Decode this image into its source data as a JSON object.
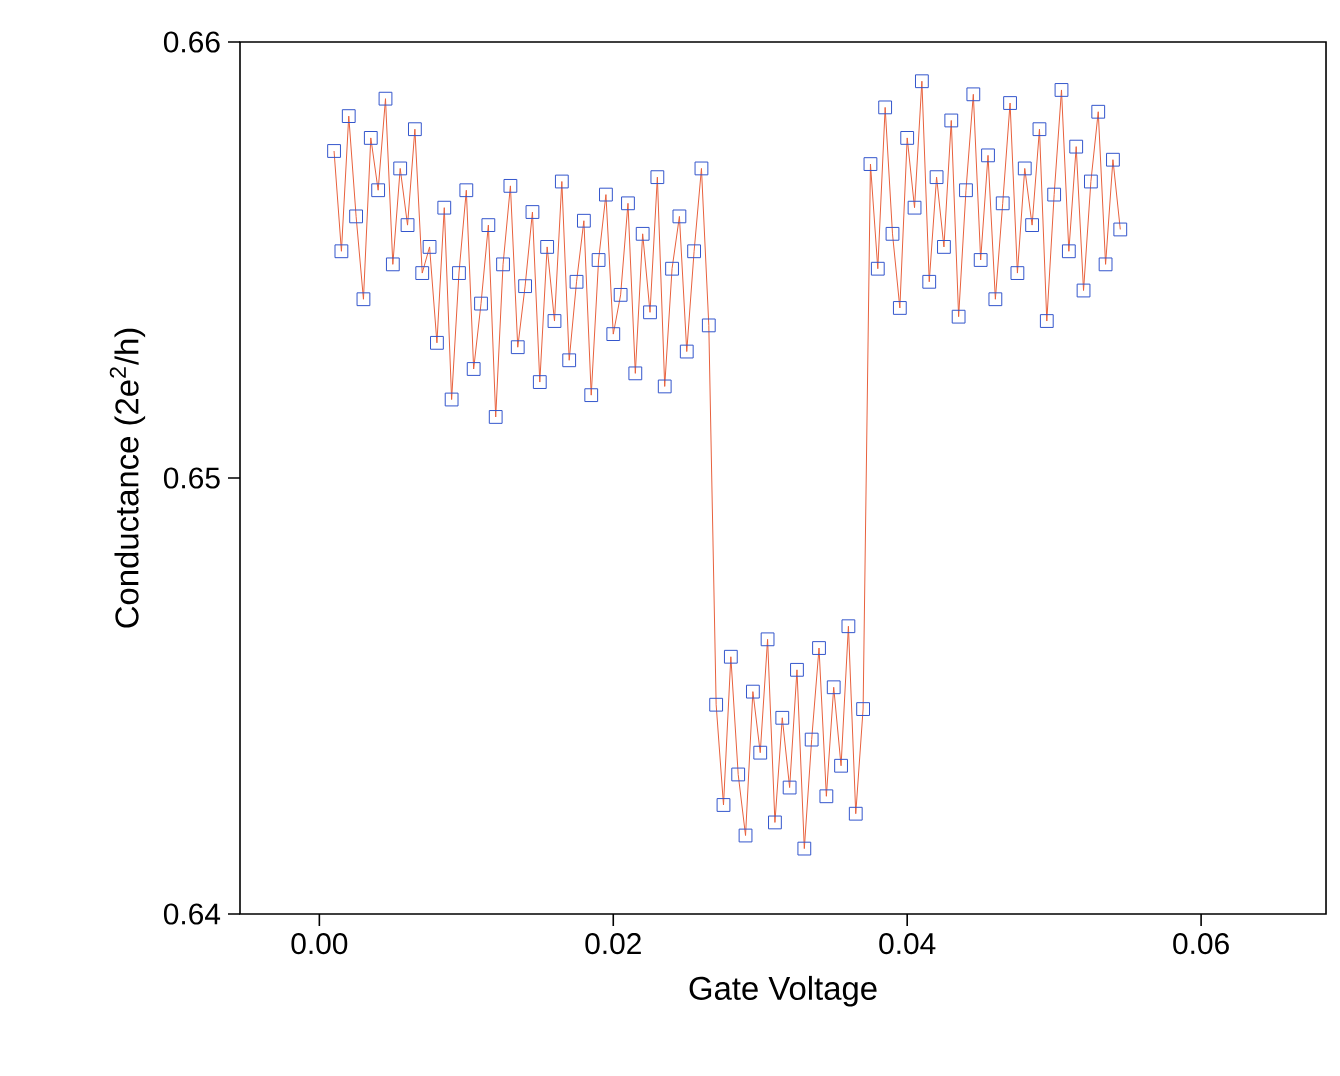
{
  "chart_data": {
    "type": "scatter",
    "xlabel": "Gate Voltage",
    "ylabel": "Conductance (2e$^{2}$/h)",
    "xlim": [
      -0.0054,
      0.0685
    ],
    "ylim": [
      0.64,
      0.66
    ],
    "xticks": [
      {
        "value": 0,
        "label": "0.00"
      },
      {
        "value": 0.02,
        "label": "0.02"
      },
      {
        "value": 0.04,
        "label": "0.04"
      },
      {
        "value": 0.06,
        "label": "0.06"
      }
    ],
    "yticks": [
      0.64,
      0.65,
      0.66
    ],
    "grid": false,
    "marker": "square",
    "x": [
      0.001,
      0.0015,
      0.002,
      0.0025,
      0.003,
      0.0035,
      0.004,
      0.0045,
      0.005,
      0.0055,
      0.006,
      0.0065,
      0.007,
      0.0075,
      0.008,
      0.0085,
      0.009,
      0.0095,
      0.01,
      0.0105,
      0.011,
      0.0115,
      0.012,
      0.0125,
      0.013,
      0.0135,
      0.014,
      0.0145,
      0.015,
      0.0155,
      0.016,
      0.0165,
      0.017,
      0.0175,
      0.018,
      0.0185,
      0.019,
      0.0195,
      0.02,
      0.0205,
      0.021,
      0.0215,
      0.022,
      0.0225,
      0.023,
      0.0235,
      0.024,
      0.0245,
      0.025,
      0.0255,
      0.026,
      0.0265,
      0.027,
      0.0275,
      0.028,
      0.0285,
      0.029,
      0.0295,
      0.03,
      0.0305,
      0.031,
      0.0315,
      0.032,
      0.0325,
      0.033,
      0.0335,
      0.034,
      0.0345,
      0.035,
      0.0355,
      0.036,
      0.0365,
      0.037,
      0.0375,
      0.038,
      0.0385,
      0.039,
      0.0395,
      0.04,
      0.0405,
      0.041,
      0.0415,
      0.042,
      0.0425,
      0.043,
      0.0435,
      0.044,
      0.0445,
      0.045,
      0.0455,
      0.046,
      0.0465,
      0.047,
      0.0475,
      0.048,
      0.0485,
      0.049,
      0.0495,
      0.05,
      0.0505,
      0.051,
      0.0515,
      0.052,
      0.0525,
      0.053,
      0.0535,
      0.054,
      0.0545
    ],
    "series": [
      {
        "type": "line",
        "color": "#e8603c",
        "marker": "none",
        "values": [
          0.6575,
          0.6552,
          0.6583,
          0.656,
          0.6541,
          0.6578,
          0.6566,
          0.6587,
          0.6549,
          0.6571,
          0.6558,
          0.658,
          0.6547,
          0.6553,
          0.6531,
          0.6562,
          0.6518,
          0.6547,
          0.6566,
          0.6525,
          0.654,
          0.6558,
          0.6514,
          0.6549,
          0.6567,
          0.653,
          0.6544,
          0.6561,
          0.6522,
          0.6553,
          0.6536,
          0.6568,
          0.6527,
          0.6545,
          0.6559,
          0.6519,
          0.655,
          0.6565,
          0.6533,
          0.6542,
          0.6563,
          0.6524,
          0.6556,
          0.6538,
          0.6569,
          0.6521,
          0.6548,
          0.656,
          0.6529,
          0.6552,
          0.6571,
          0.6535,
          0.6448,
          0.6425,
          0.6459,
          0.6432,
          0.6418,
          0.6451,
          0.6437,
          0.6463,
          0.6421,
          0.6445,
          0.6429,
          0.6456,
          0.6415,
          0.644,
          0.6461,
          0.6427,
          0.6452,
          0.6434,
          0.6466,
          0.6423,
          0.6447,
          0.6572,
          0.6548,
          0.6585,
          0.6556,
          0.6539,
          0.6578,
          0.6562,
          0.6591,
          0.6545,
          0.6569,
          0.6553,
          0.6582,
          0.6537,
          0.6566,
          0.6588,
          0.655,
          0.6574,
          0.6541,
          0.6563,
          0.6586,
          0.6547,
          0.6571,
          0.6558,
          0.658,
          0.6536,
          0.6565,
          0.6589,
          0.6552,
          0.6576,
          0.6543,
          0.6568,
          0.6584,
          0.6549,
          0.6573,
          0.6557
        ]
      },
      {
        "color": "#3355cc",
        "values": [
          0.6575,
          0.6552,
          0.6583,
          0.656,
          0.6541,
          0.6578,
          0.6566,
          0.6587,
          0.6549,
          0.6571,
          0.6558,
          0.658,
          0.6547,
          0.6553,
          0.6531,
          0.6562,
          0.6518,
          0.6547,
          0.6566,
          0.6525,
          0.654,
          0.6558,
          0.6514,
          0.6549,
          0.6567,
          0.653,
          0.6544,
          0.6561,
          0.6522,
          0.6553,
          0.6536,
          0.6568,
          0.6527,
          0.6545,
          0.6559,
          0.6519,
          0.655,
          0.6565,
          0.6533,
          0.6542,
          0.6563,
          0.6524,
          0.6556,
          0.6538,
          0.6569,
          0.6521,
          0.6548,
          0.656,
          0.6529,
          0.6552,
          0.6571,
          0.6535,
          0.6448,
          0.6425,
          0.6459,
          0.6432,
          0.6418,
          0.6451,
          0.6437,
          0.6463,
          0.6421,
          0.6445,
          0.6429,
          0.6456,
          0.6415,
          0.644,
          0.6461,
          0.6427,
          0.6452,
          0.6434,
          0.6466,
          0.6423,
          0.6447,
          0.6572,
          0.6548,
          0.6585,
          0.6556,
          0.6539,
          0.6578,
          0.6562,
          0.6591,
          0.6545,
          0.6569,
          0.6553,
          0.6582,
          0.6537,
          0.6566,
          0.6588,
          0.655,
          0.6574,
          0.6541,
          0.6563,
          0.6586,
          0.6547,
          0.6571,
          0.6558,
          0.658,
          0.6536,
          0.6565,
          0.6589,
          0.6552,
          0.6576,
          0.6543,
          0.6568,
          0.6584,
          0.6549,
          0.6573,
          0.6557
        ]
      }
    ]
  }
}
